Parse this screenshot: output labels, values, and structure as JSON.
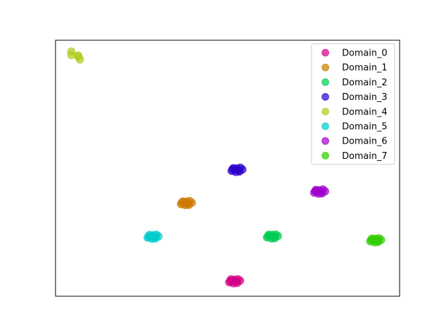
{
  "chart_data": {
    "type": "scatter",
    "title": "",
    "xlabel": "",
    "ylabel": "",
    "xlim": [
      0,
      100
    ],
    "ylim": [
      0,
      100
    ],
    "grid": false,
    "axis_ticks": false,
    "legend_placement": "upper right",
    "series": [
      {
        "name": "Domain_0",
        "color": "#d4008a",
        "points": [
          [
            50.5,
            5.5
          ],
          [
            51.5,
            6.0
          ],
          [
            52.5,
            5.8
          ],
          [
            53.6,
            6.1
          ],
          [
            51.0,
            6.6
          ],
          [
            52.0,
            6.4
          ],
          [
            53.0,
            6.6
          ],
          [
            51.7,
            5.1
          ],
          [
            52.8,
            5.2
          ],
          [
            50.9,
            5.9
          ]
        ]
      },
      {
        "name": "Domain_1",
        "color": "#cc7a00",
        "points": [
          [
            36.5,
            36.0
          ],
          [
            37.5,
            36.4
          ],
          [
            38.5,
            36.2
          ],
          [
            39.6,
            36.5
          ],
          [
            37.0,
            37.0
          ],
          [
            38.0,
            36.9
          ],
          [
            39.0,
            37.2
          ],
          [
            37.7,
            35.6
          ],
          [
            38.7,
            35.7
          ],
          [
            36.8,
            36.6
          ]
        ]
      },
      {
        "name": "Domain_2",
        "color": "#00cc52",
        "points": [
          [
            61.5,
            23.0
          ],
          [
            62.5,
            23.4
          ],
          [
            63.5,
            23.2
          ],
          [
            64.6,
            23.5
          ],
          [
            62.0,
            24.0
          ],
          [
            63.0,
            23.9
          ],
          [
            64.0,
            24.1
          ],
          [
            62.7,
            22.6
          ],
          [
            63.7,
            22.7
          ],
          [
            61.8,
            23.5
          ]
        ]
      },
      {
        "name": "Domain_3",
        "color": "#2c00cc",
        "points": [
          [
            51.2,
            49.0
          ],
          [
            52.2,
            49.4
          ],
          [
            53.2,
            49.2
          ],
          [
            54.3,
            49.5
          ],
          [
            51.7,
            50.0
          ],
          [
            52.7,
            49.9
          ],
          [
            53.7,
            50.2
          ],
          [
            52.4,
            48.6
          ],
          [
            53.4,
            48.7
          ],
          [
            51.5,
            49.6
          ]
        ]
      },
      {
        "name": "Domain_4",
        "color": "#b0cc1f",
        "points": [
          [
            4.6,
            94.2
          ],
          [
            6.6,
            94.0
          ],
          [
            4.6,
            95.6
          ],
          [
            6.6,
            93.6
          ],
          [
            7.1,
            92.5
          ]
        ]
      },
      {
        "name": "Domain_5",
        "color": "#00cccc",
        "points": [
          [
            26.8,
            22.9
          ],
          [
            27.8,
            23.3
          ],
          [
            28.8,
            23.1
          ],
          [
            29.9,
            23.4
          ],
          [
            27.3,
            23.9
          ],
          [
            28.3,
            23.8
          ],
          [
            29.3,
            24.0
          ],
          [
            28.0,
            22.5
          ],
          [
            29.0,
            22.6
          ],
          [
            27.1,
            23.4
          ]
        ]
      },
      {
        "name": "Domain_6",
        "color": "#a000cc",
        "points": [
          [
            75.2,
            40.5
          ],
          [
            76.2,
            40.9
          ],
          [
            77.2,
            40.7
          ],
          [
            78.3,
            41.0
          ],
          [
            75.7,
            41.5
          ],
          [
            76.7,
            41.4
          ],
          [
            77.7,
            41.7
          ],
          [
            76.4,
            40.1
          ],
          [
            77.4,
            40.2
          ],
          [
            75.5,
            41.1
          ]
        ]
      },
      {
        "name": "Domain_7",
        "color": "#33cc00",
        "points": [
          [
            91.5,
            21.5
          ],
          [
            92.5,
            21.9
          ],
          [
            93.5,
            21.7
          ],
          [
            94.6,
            22.0
          ],
          [
            92.0,
            22.5
          ],
          [
            93.0,
            22.4
          ],
          [
            94.0,
            22.6
          ],
          [
            92.7,
            21.1
          ],
          [
            93.7,
            21.2
          ],
          [
            91.8,
            22.0
          ]
        ]
      }
    ]
  }
}
